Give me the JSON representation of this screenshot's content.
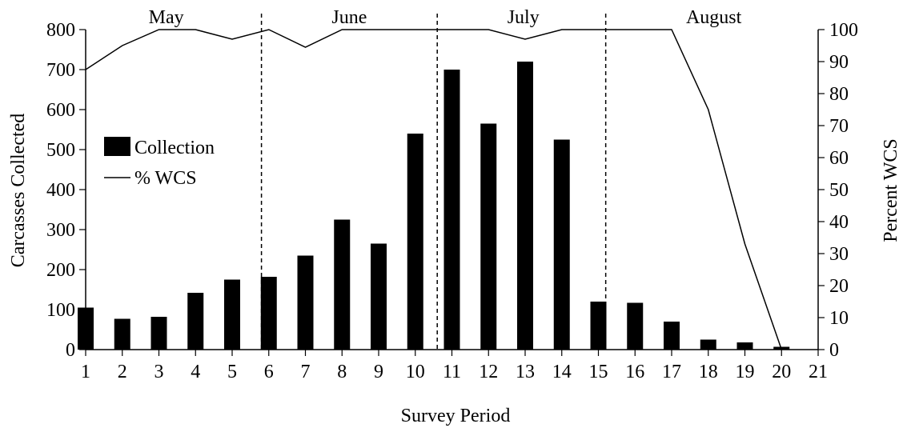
{
  "chart_data": {
    "type": "bar",
    "xlabel": "Survey Period",
    "ylabel": "Carcasses Collected",
    "ylabel_right": "Percent WCS",
    "x_ticks": [
      1,
      2,
      3,
      4,
      5,
      6,
      7,
      8,
      9,
      10,
      11,
      12,
      13,
      14,
      15,
      16,
      17,
      18,
      19,
      20,
      21
    ],
    "xlim": [
      1,
      21
    ],
    "ylim": [
      0,
      800
    ],
    "y_ticks": [
      0,
      100,
      200,
      300,
      400,
      500,
      600,
      700,
      800
    ],
    "ylim_right": [
      0,
      100
    ],
    "y_ticks_right": [
      0,
      10,
      20,
      30,
      40,
      50,
      60,
      70,
      80,
      90,
      100
    ],
    "grid": false,
    "legend_position": "left",
    "series": [
      {
        "name": "Collection",
        "type": "bar",
        "color": "#000000",
        "x": [
          1,
          2,
          3,
          4,
          5,
          6,
          7,
          8,
          9,
          10,
          11,
          12,
          13,
          14,
          15,
          16,
          17,
          18,
          19,
          20
        ],
        "values": [
          105,
          77,
          82,
          142,
          175,
          182,
          235,
          325,
          265,
          540,
          700,
          565,
          720,
          525,
          120,
          117,
          70,
          25,
          18,
          7
        ]
      },
      {
        "name": "% WCS",
        "type": "line",
        "axis": "right",
        "color": "#000000",
        "x": [
          1,
          2,
          3,
          4,
          5,
          6,
          7,
          8,
          9,
          10,
          11,
          12,
          13,
          14,
          15,
          16,
          17,
          18,
          19,
          20
        ],
        "values": [
          87.5,
          95,
          100,
          100,
          97,
          100,
          94.5,
          100,
          100,
          100,
          100,
          100,
          97,
          100,
          100,
          100,
          100,
          75,
          33,
          0
        ]
      }
    ],
    "months": [
      {
        "label": "May",
        "x": 3.2
      },
      {
        "label": "June",
        "x": 8.2
      },
      {
        "label": "July",
        "x": 12.95
      },
      {
        "label": "August",
        "x": 18.15
      }
    ],
    "month_dividers": [
      5.8,
      10.6,
      15.2
    ]
  }
}
